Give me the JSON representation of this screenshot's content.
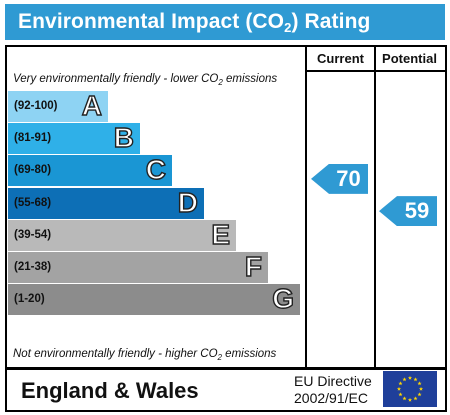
{
  "header": {
    "title_pre": "Environmental Impact (CO",
    "title_sub": "2",
    "title_post": ") Rating"
  },
  "columns": {
    "current": "Current",
    "potential": "Potential"
  },
  "notes": {
    "top_pre": "Very environmentally friendly - lower CO",
    "top_sub": "2",
    "top_post": " emissions",
    "bottom_pre": "Not environmentally friendly - higher CO",
    "bottom_sub": "2",
    "bottom_post": " emissions"
  },
  "chart_data": {
    "type": "bar",
    "bands": [
      {
        "range": "(92-100)",
        "letter": "A",
        "color": "#8ed3f3"
      },
      {
        "range": "(81-91)",
        "letter": "B",
        "color": "#2fb0e8"
      },
      {
        "range": "(69-80)",
        "letter": "C",
        "color": "#1a96d4"
      },
      {
        "range": "(55-68)",
        "letter": "D",
        "color": "#0d6fb6"
      },
      {
        "range": "(39-54)",
        "letter": "E",
        "color": "#b9b9b9"
      },
      {
        "range": "(21-38)",
        "letter": "F",
        "color": "#a3a3a3"
      },
      {
        "range": "(1-20)",
        "letter": "G",
        "color": "#8c8c8c"
      }
    ],
    "current": {
      "value": "70",
      "band": "C"
    },
    "potential": {
      "value": "59",
      "band": "D"
    },
    "arrow_color": "#2f9ad3"
  },
  "footer": {
    "country": "England & Wales",
    "directive_line1": "EU Directive",
    "directive_line2": "2002/91/EC",
    "flag_icon": "eu-flag-icon"
  }
}
